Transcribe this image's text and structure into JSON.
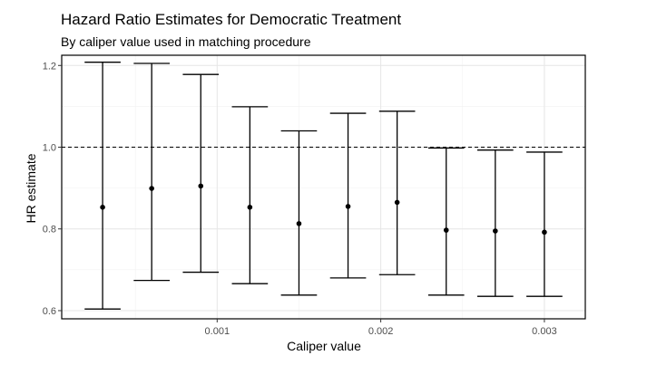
{
  "chart_data": {
    "type": "errorbar",
    "title": "Hazard Ratio Estimates for Democratic Treatment",
    "subtitle": "By caliper value used in matching procedure",
    "xlabel": "Caliper value",
    "ylabel": "HR estimate",
    "xlim": [
      5e-05,
      0.00325
    ],
    "ylim": [
      0.58,
      1.225
    ],
    "x_ticks": [
      0.001,
      0.002,
      0.003
    ],
    "x_tick_labels": [
      "0.001",
      "0.002",
      "0.003"
    ],
    "y_ticks": [
      0.6,
      0.8,
      1.0,
      1.2
    ],
    "y_tick_labels": [
      "0.6",
      "0.8",
      "1.0",
      "1.2"
    ],
    "reference_line": 1.0,
    "errorbar_width": 0.00022,
    "grid": true,
    "points": [
      {
        "x": 0.0003,
        "estimate": 0.853,
        "lower": 0.604,
        "upper": 1.208
      },
      {
        "x": 0.0006,
        "estimate": 0.899,
        "lower": 0.674,
        "upper": 1.205
      },
      {
        "x": 0.0009,
        "estimate": 0.905,
        "lower": 0.694,
        "upper": 1.178
      },
      {
        "x": 0.0012,
        "estimate": 0.853,
        "lower": 0.666,
        "upper": 1.099
      },
      {
        "x": 0.0015,
        "estimate": 0.813,
        "lower": 0.638,
        "upper": 1.04
      },
      {
        "x": 0.0018,
        "estimate": 0.855,
        "lower": 0.68,
        "upper": 1.083
      },
      {
        "x": 0.0021,
        "estimate": 0.865,
        "lower": 0.688,
        "upper": 1.088
      },
      {
        "x": 0.0024,
        "estimate": 0.797,
        "lower": 0.638,
        "upper": 0.998
      },
      {
        "x": 0.0027,
        "estimate": 0.795,
        "lower": 0.635,
        "upper": 0.993
      },
      {
        "x": 0.003,
        "estimate": 0.792,
        "lower": 0.635,
        "upper": 0.988
      }
    ]
  }
}
